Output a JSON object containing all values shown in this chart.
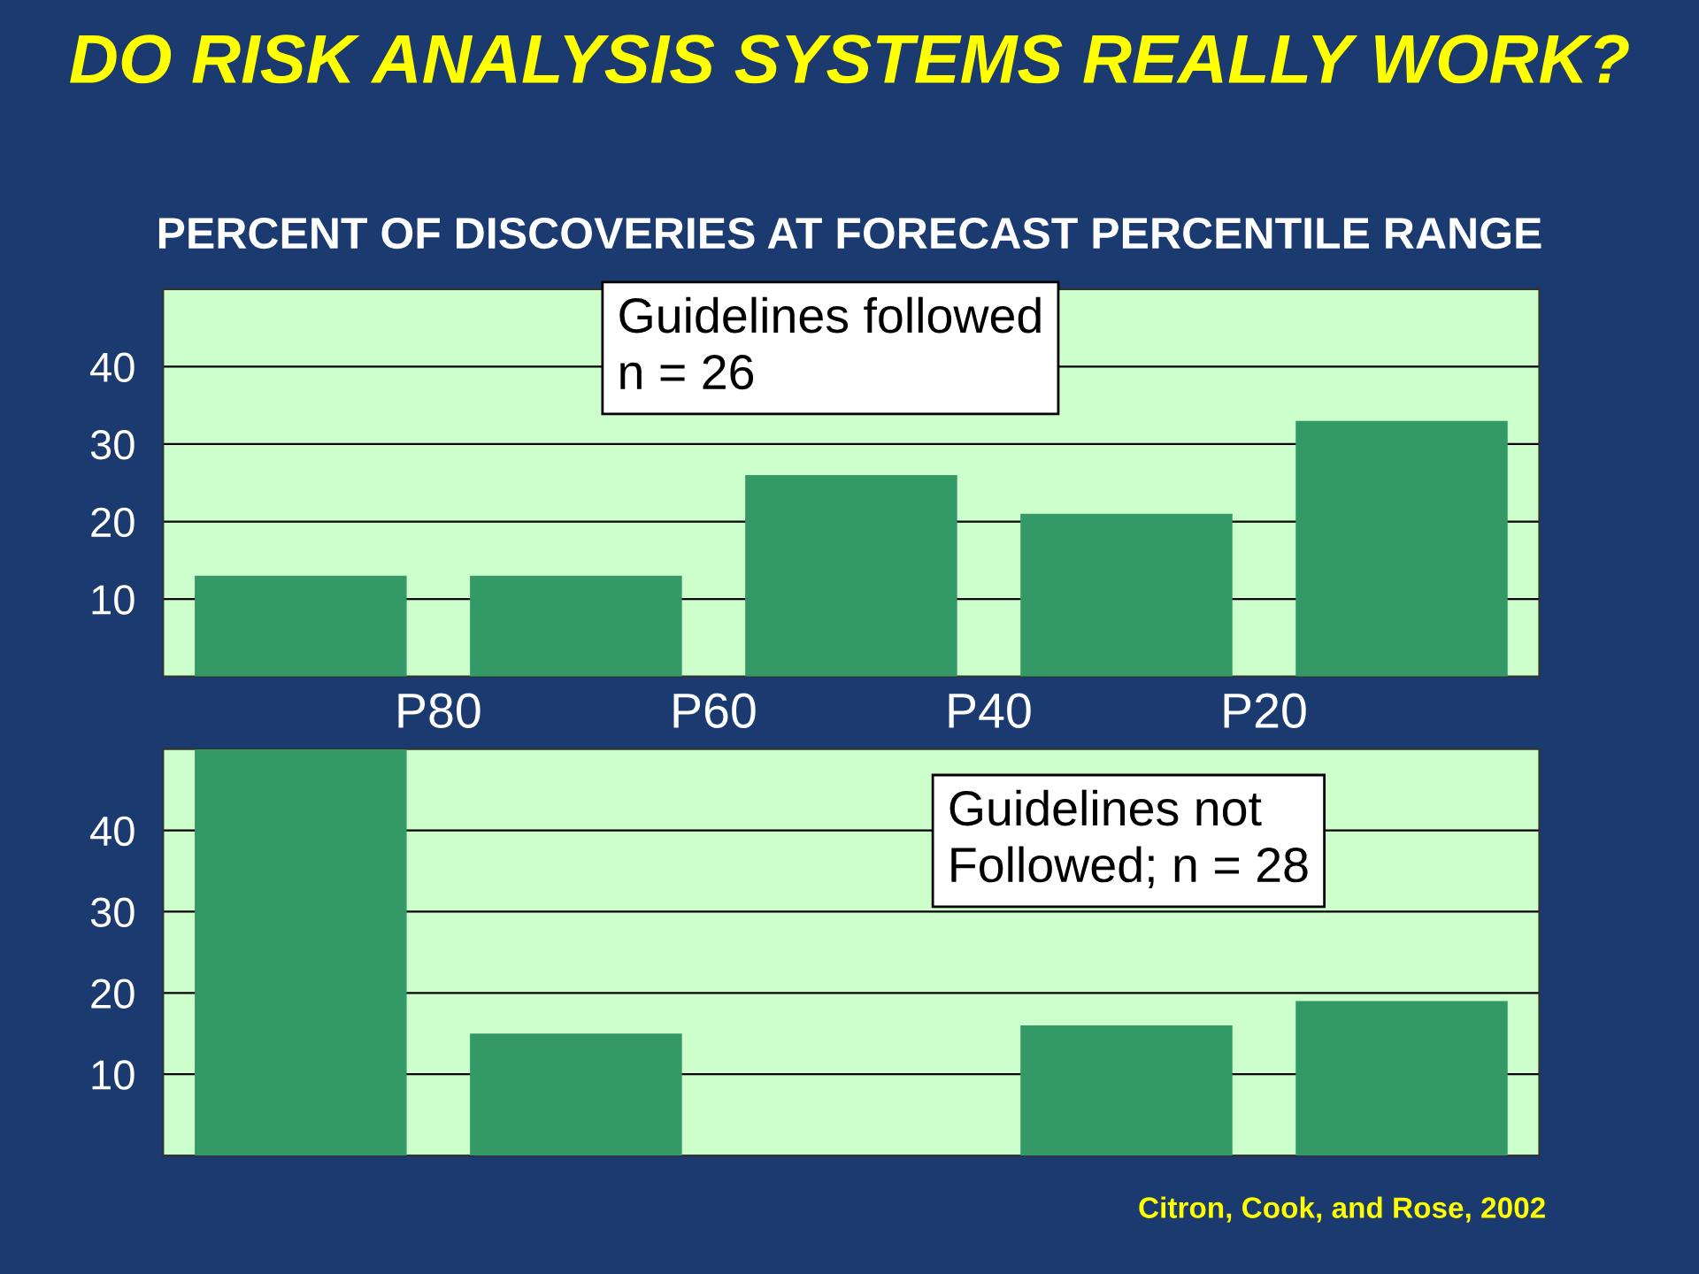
{
  "chart_data": [
    {
      "type": "bar",
      "title": "DO RISK ANALYSIS SYSTEMS REALLY WORK?",
      "subtitle": "PERCENT OF DISCOVERIES AT FORECAST PERCENTILE RANGE",
      "categories": [
        null,
        null,
        null,
        null,
        null
      ],
      "values": [
        13,
        13,
        26,
        21,
        33
      ],
      "color": "#339966",
      "ylim": [
        0,
        50
      ],
      "yticks": [
        10,
        20,
        30,
        40
      ],
      "grid": "y",
      "tick_labels": "y",
      "annotations": [
        "Guidelines followed\nn = 26",
        "P80",
        "P60",
        "P40",
        "P20"
      ]
    },
    {
      "type": "bar",
      "categories": [
        null,
        null,
        null,
        null,
        null
      ],
      "values": [
        50,
        15,
        0,
        16,
        19
      ],
      "color": "#339966",
      "ylim": [
        0,
        50
      ],
      "yticks": [
        10,
        20,
        30,
        40
      ],
      "grid": "y",
      "tick_labels": "y",
      "annotations": [
        "Guidelines not\nFollowed; n = 28",
        "Citron, Cook, and Rose, 2002"
      ]
    }
  ]
}
